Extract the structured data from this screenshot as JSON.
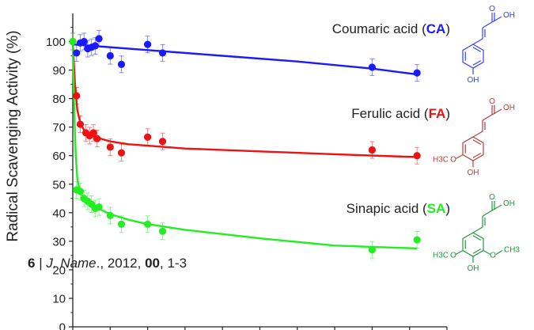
{
  "chart_data": {
    "type": "scatter",
    "ylabel": "Radical Scavenging Activity (%)",
    "ylim": [
      0,
      105
    ],
    "yticks": [
      0,
      10,
      20,
      30,
      40,
      50,
      60,
      70,
      80,
      90,
      100
    ],
    "xlim": [
      0,
      100
    ],
    "series": [
      {
        "name": "Coumaric acid (CA)",
        "name_prefix": "Coumaric acid (",
        "abbr": "CA",
        "name_suffix": ")",
        "color": "#1a1aff",
        "points": [
          [
            1,
            96
          ],
          [
            2,
            99.5
          ],
          [
            3,
            100
          ],
          [
            4,
            97.5
          ],
          [
            5,
            98
          ],
          [
            6,
            98.5
          ],
          [
            7,
            101
          ],
          [
            10,
            95
          ],
          [
            13,
            92
          ],
          [
            20,
            99
          ],
          [
            24,
            96
          ],
          [
            80,
            91
          ],
          [
            92,
            89
          ]
        ],
        "fit": [
          [
            0,
            99
          ],
          [
            20,
            97
          ],
          [
            40,
            95
          ],
          [
            60,
            93
          ],
          [
            80,
            90.5
          ],
          [
            92,
            88.5
          ]
        ]
      },
      {
        "name": "Ferulic acid (FA)",
        "name_prefix": "Ferulic acid (",
        "abbr": "FA",
        "name_suffix": ")",
        "color": "#ee1111",
        "points": [
          [
            0,
            100
          ],
          [
            1,
            81
          ],
          [
            2,
            71
          ],
          [
            3.5,
            68
          ],
          [
            4.5,
            67
          ],
          [
            5.5,
            68
          ],
          [
            6.5,
            66
          ],
          [
            10,
            63
          ],
          [
            13,
            61
          ],
          [
            20,
            66.5
          ],
          [
            24,
            65
          ],
          [
            80,
            62
          ],
          [
            92,
            60
          ]
        ],
        "fit": [
          [
            0,
            100
          ],
          [
            0.6,
            85
          ],
          [
            1.2,
            76
          ],
          [
            2,
            71.5
          ],
          [
            3,
            69
          ],
          [
            4,
            67.8
          ],
          [
            6,
            66.5
          ],
          [
            10,
            65
          ],
          [
            15,
            64
          ],
          [
            20,
            63.5
          ],
          [
            30,
            62.5
          ],
          [
            50,
            61.5
          ],
          [
            70,
            60.5
          ],
          [
            92,
            59.5
          ]
        ]
      },
      {
        "name": "Sinapic acid (SA)",
        "name_prefix": "Sinapic acid (",
        "abbr": "SA",
        "name_suffix": ")",
        "color": "#22ee22",
        "points": [
          [
            0,
            100
          ],
          [
            1,
            48
          ],
          [
            2,
            47.5
          ],
          [
            3,
            45
          ],
          [
            4,
            44
          ],
          [
            5,
            43
          ],
          [
            6,
            41.5
          ],
          [
            7,
            42
          ],
          [
            10,
            39
          ],
          [
            13,
            36
          ],
          [
            20,
            36
          ],
          [
            24,
            33.5
          ],
          [
            80,
            27
          ],
          [
            92,
            30.5
          ]
        ],
        "fit": [
          [
            0,
            100
          ],
          [
            0.4,
            75
          ],
          [
            0.8,
            60
          ],
          [
            1.2,
            52
          ],
          [
            1.8,
            48
          ],
          [
            2.5,
            46
          ],
          [
            4,
            44
          ],
          [
            6,
            42
          ],
          [
            10,
            39.5
          ],
          [
            15,
            37.5
          ],
          [
            20,
            36
          ],
          [
            30,
            34
          ],
          [
            50,
            31
          ],
          [
            70,
            28.5
          ],
          [
            92,
            27.5
          ]
        ]
      }
    ]
  },
  "footer": {
    "page": "6",
    "separator": " | ",
    "journal": "J. Name",
    "dot": ".",
    "year_part": ", 2012, ",
    "volume": "00",
    "pages": ", 1-3"
  },
  "structures": [
    {
      "name": "coumaric-acid-structure",
      "color": "#3344ee",
      "top_label": "OH",
      "bottom_label": "OH"
    },
    {
      "name": "ferulic-acid-structure",
      "color": "#b04040",
      "top_label": "OH",
      "bottom_label": "OH",
      "left_label": "H3C",
      "o_label": "O"
    },
    {
      "name": "sinapic-acid-structure",
      "color": "#229944",
      "top_label": "OH",
      "bottom_label": "OH",
      "left_label": "H3C",
      "o_label": "O",
      "right_label": "CH3"
    }
  ]
}
